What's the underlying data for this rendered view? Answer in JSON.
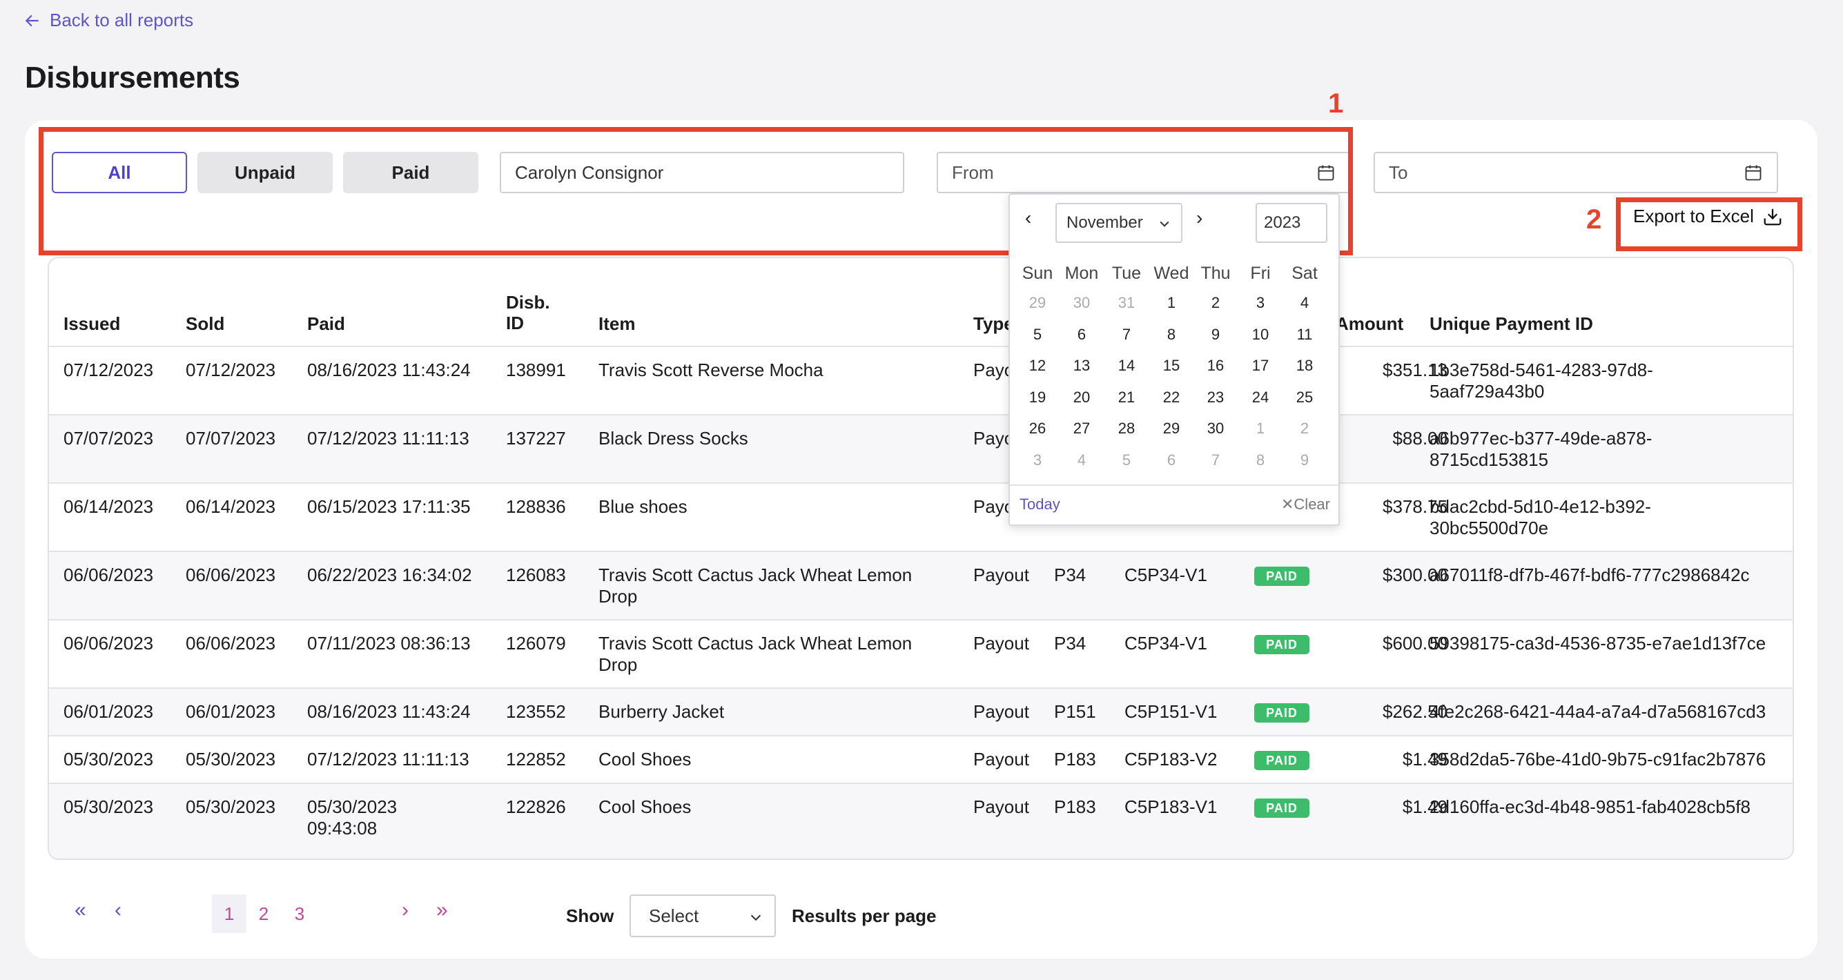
{
  "nav": {
    "back_label": "Back to all reports"
  },
  "page": {
    "title": "Disbursements"
  },
  "filters": {
    "all": "All",
    "unpaid": "Unpaid",
    "paid": "Paid",
    "consignor": "Carolyn Consignor",
    "from_placeholder": "From",
    "to_placeholder": "To"
  },
  "annotations": {
    "label1": "1",
    "label2": "2",
    "color": "#e8412c"
  },
  "export": {
    "label": "Export to Excel"
  },
  "table": {
    "headers": {
      "issued": "Issued",
      "sold": "Sold",
      "paid": "Paid",
      "disb_id_1": "Disb.",
      "disb_id_2": "ID",
      "item": "Item",
      "type": "Type",
      "amount": "Amount",
      "unique_id": "Unique Payment ID"
    },
    "rows": [
      {
        "issued": "07/12/2023",
        "sold": "07/12/2023",
        "paid": "08/16/2023 11:43:24",
        "paid2": "",
        "disb": "138991",
        "item": "Travis Scott Reverse Mocha",
        "item2": "",
        "type": "Payo",
        "code": "",
        "sku": "",
        "status": "",
        "amount": "$351.13",
        "uid": "1b3e758d-5461-4283-97d8-",
        "uid2": "5aaf729a43b0"
      },
      {
        "issued": "07/07/2023",
        "sold": "07/07/2023",
        "paid": "07/12/2023 11:11:13",
        "paid2": "",
        "disb": "137227",
        "item": "Black Dress Socks",
        "item2": "",
        "type": "Payo",
        "code": "",
        "sku": "",
        "status": "",
        "amount": "$88.00",
        "uid": "a6b977ec-b377-49de-a878-",
        "uid2": "8715cd153815"
      },
      {
        "issued": "06/14/2023",
        "sold": "06/14/2023",
        "paid": "06/15/2023 17:11:35",
        "paid2": "",
        "disb": "128836",
        "item": "Blue shoes",
        "item2": "",
        "type": "Payo",
        "code": "",
        "sku": "",
        "status": "",
        "amount": "$378.75",
        "uid": "bdac2cbd-5d10-4e12-b392-",
        "uid2": "30bc5500d70e"
      },
      {
        "issued": "06/06/2023",
        "sold": "06/06/2023",
        "paid": "06/22/2023 16:34:02",
        "paid2": "",
        "disb": "126083",
        "item": "Travis Scott Cactus Jack Wheat Lemon",
        "item2": "Drop",
        "type": "Payout",
        "code": "P34",
        "sku": "C5P34-V1",
        "status": "PAID",
        "amount": "$300.00",
        "uid": "a67011f8-df7b-467f-bdf6-777c2986842c",
        "uid2": ""
      },
      {
        "issued": "06/06/2023",
        "sold": "06/06/2023",
        "paid": "07/11/2023 08:36:13",
        "paid2": "",
        "disb": "126079",
        "item": "Travis Scott Cactus Jack Wheat Lemon",
        "item2": "Drop",
        "type": "Payout",
        "code": "P34",
        "sku": "C5P34-V1",
        "status": "PAID",
        "amount": "$600.00",
        "uid": "59398175-ca3d-4536-8735-e7ae1d13f7ce",
        "uid2": ""
      },
      {
        "issued": "06/01/2023",
        "sold": "06/01/2023",
        "paid": "08/16/2023 11:43:24",
        "paid2": "",
        "disb": "123552",
        "item": "Burberry Jacket",
        "item2": "",
        "type": "Payout",
        "code": "P151",
        "sku": "C5P151-V1",
        "status": "PAID",
        "amount": "$262.50",
        "uid": "4fe2c268-6421-44a4-a7a4-d7a568167cd3",
        "uid2": ""
      },
      {
        "issued": "05/30/2023",
        "sold": "05/30/2023",
        "paid": "07/12/2023 11:11:13",
        "paid2": "",
        "disb": "122852",
        "item": "Cool Shoes",
        "item2": "",
        "type": "Payout",
        "code": "P183",
        "sku": "C5P183-V2",
        "status": "PAID",
        "amount": "$1.49",
        "uid": "358d2da5-76be-41d0-9b75-c91fac2b7876",
        "uid2": ""
      },
      {
        "issued": "05/30/2023",
        "sold": "05/30/2023",
        "paid": "05/30/2023",
        "paid2": "09:43:08",
        "disb": "122826",
        "item": "Cool Shoes",
        "item2": "",
        "type": "Payout",
        "code": "P183",
        "sku": "C5P183-V1",
        "status": "PAID",
        "amount": "$1.49",
        "uid": "2d160ffa-ec3d-4b48-9851-fab4028cb5f8",
        "uid2": ""
      }
    ]
  },
  "calendar": {
    "month": "November",
    "year": "2023",
    "weekdays": [
      "Sun",
      "Mon",
      "Tue",
      "Wed",
      "Thu",
      "Fri",
      "Sat"
    ],
    "weeks": [
      [
        "29",
        "30",
        "31",
        "1",
        "2",
        "3",
        "4"
      ],
      [
        "5",
        "6",
        "7",
        "8",
        "9",
        "10",
        "11"
      ],
      [
        "12",
        "13",
        "14",
        "15",
        "16",
        "17",
        "18"
      ],
      [
        "19",
        "20",
        "21",
        "22",
        "23",
        "24",
        "25"
      ],
      [
        "26",
        "27",
        "28",
        "29",
        "30",
        "1",
        "2"
      ],
      [
        "3",
        "4",
        "5",
        "6",
        "7",
        "8",
        "9"
      ]
    ],
    "today": "Today",
    "clear": "Clear"
  },
  "pagination": {
    "pages": [
      "1",
      "2",
      "3"
    ],
    "current": "1",
    "show_label": "Show",
    "select_value": "Select",
    "per_page_label": "Results per page"
  }
}
